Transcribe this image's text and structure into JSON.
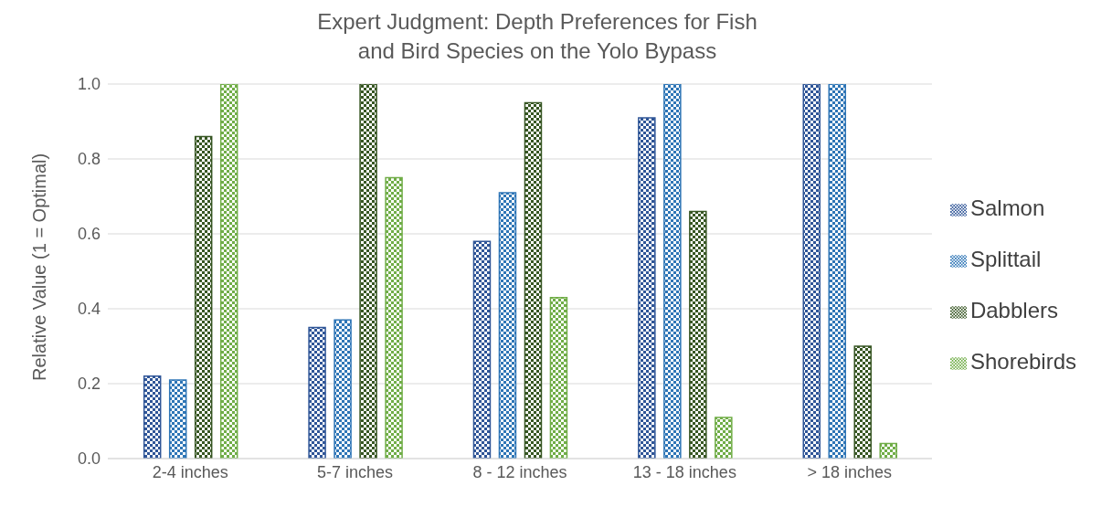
{
  "chart_data": {
    "type": "bar",
    "title": "Expert Judgment: Depth Preferences for Fish and Bird Species on the Yolo Bypass",
    "ylabel": "Relative Value (1 = Optimal)",
    "categories": [
      "2-4 inches",
      "5-7 inches",
      "8 - 12 inches",
      "13 - 18 inches",
      "> 18 inches"
    ],
    "series": [
      {
        "name": "Salmon",
        "color": "#2f5597",
        "values": [
          0.22,
          0.35,
          0.58,
          0.91,
          1.0
        ]
      },
      {
        "name": "Splittail",
        "color": "#2e75b6",
        "values": [
          0.21,
          0.37,
          0.71,
          1.0,
          1.0
        ]
      },
      {
        "name": "Dabblers",
        "color": "#375623",
        "values": [
          0.86,
          1.0,
          0.95,
          0.66,
          0.3
        ]
      },
      {
        "name": "Shorebirds",
        "color": "#70ad47",
        "values": [
          1.0,
          0.75,
          0.43,
          0.11,
          0.04
        ]
      }
    ],
    "ylim": [
      0,
      1
    ],
    "yticks": [
      {
        "value": 0,
        "label": "0.0"
      },
      {
        "value": 0.2,
        "label": "0.2"
      },
      {
        "value": 0.4,
        "label": "0.4"
      },
      {
        "value": 0.6,
        "label": "0.6"
      },
      {
        "value": 0.8,
        "label": "0.8"
      },
      {
        "value": 1,
        "label": "1.0"
      }
    ],
    "grid": "y",
    "legend": "right"
  }
}
